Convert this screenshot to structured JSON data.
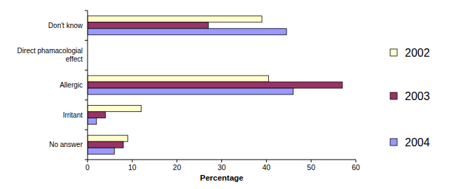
{
  "chart_data": {
    "type": "bar",
    "orientation": "horizontal",
    "xlabel": "Percentage",
    "categories": [
      "Don't know",
      "Direct phamacologial effect",
      "Allergic",
      "Irritant",
      "No answer"
    ],
    "series": [
      {
        "name": "2002",
        "color": "#ffffcc",
        "values": [
          39,
          0,
          40.5,
          12,
          9
        ]
      },
      {
        "name": "2003",
        "color": "#993366",
        "values": [
          27,
          0,
          57,
          4,
          8
        ]
      },
      {
        "name": "2004",
        "color": "#9999ff",
        "values": [
          44.5,
          0,
          46,
          2,
          6
        ]
      }
    ],
    "xlim": [
      0,
      60
    ],
    "xticks": [
      0,
      10,
      20,
      30,
      40,
      50,
      60
    ],
    "grid": false,
    "legend": "right"
  }
}
